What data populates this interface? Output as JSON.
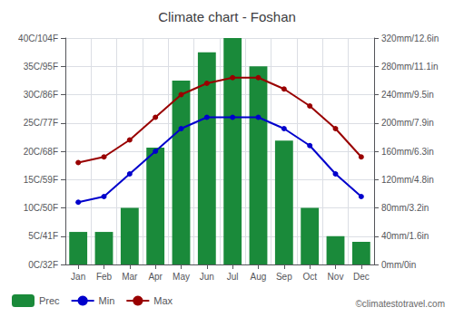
{
  "chart_data": {
    "type": "bar",
    "title": "Climate chart - Foshan",
    "categories": [
      "Jan",
      "Feb",
      "Mar",
      "Apr",
      "May",
      "Jun",
      "Jul",
      "Aug",
      "Sep",
      "Oct",
      "Nov",
      "Dec"
    ],
    "series": [
      {
        "name": "Prec",
        "type": "bar",
        "axis": "y2",
        "color": "#1a8a3a",
        "values": [
          46,
          46,
          80,
          165,
          260,
          300,
          320,
          280,
          175,
          80,
          40,
          32
        ]
      },
      {
        "name": "Min",
        "type": "line",
        "color": "#0000cc",
        "marker": "circle",
        "values": [
          11,
          12,
          16,
          20,
          24,
          26,
          26,
          26,
          24,
          21,
          16,
          12
        ]
      },
      {
        "name": "Max",
        "type": "line",
        "color": "#990000",
        "marker": "circle",
        "values": [
          18,
          19,
          22,
          26,
          30,
          32,
          33,
          33,
          31,
          28,
          24,
          19
        ]
      }
    ],
    "ylim": [
      0,
      40
    ],
    "yticks": [
      {
        "value": 0,
        "label": "0C/32F"
      },
      {
        "value": 5,
        "label": "5C/41F"
      },
      {
        "value": 10,
        "label": "10C/50F"
      },
      {
        "value": 15,
        "label": "15C/59F"
      },
      {
        "value": 20,
        "label": "20C/68F"
      },
      {
        "value": 25,
        "label": "25C/77F"
      },
      {
        "value": 30,
        "label": "30C/86F"
      },
      {
        "value": 35,
        "label": "35C/95F"
      },
      {
        "value": 40,
        "label": "40C/104F"
      }
    ],
    "y2lim": [
      0,
      320
    ],
    "y2ticks": [
      {
        "value": 0,
        "label": "0mm/0in"
      },
      {
        "value": 40,
        "label": "40mm/1.6in"
      },
      {
        "value": 80,
        "label": "80mm/3.2in"
      },
      {
        "value": 120,
        "label": "120mm/4.8in"
      },
      {
        "value": 160,
        "label": "160mm/6.3in"
      },
      {
        "value": 200,
        "label": "200mm/7.9in"
      },
      {
        "value": 240,
        "label": "240mm/9.5in"
      },
      {
        "value": 280,
        "label": "280mm/11.1in"
      },
      {
        "value": 320,
        "label": "320mm/12.6in"
      }
    ],
    "grid": true,
    "legend": "bottom-left",
    "annotations": [
      "©climatestotravel.com"
    ]
  }
}
